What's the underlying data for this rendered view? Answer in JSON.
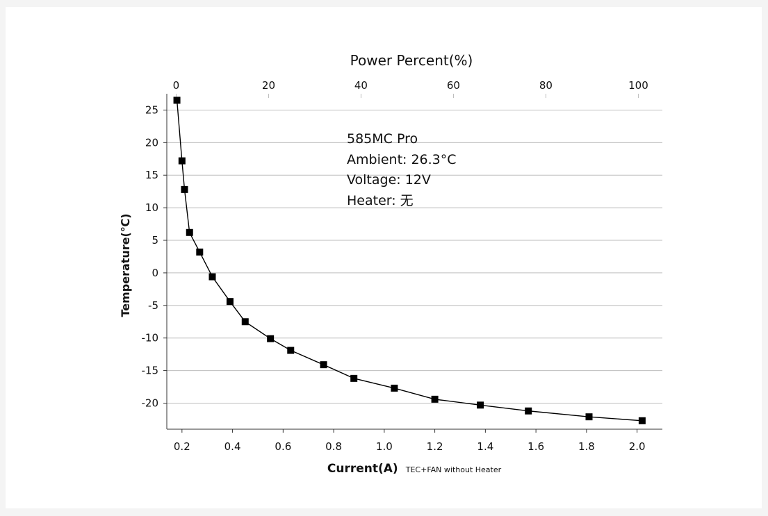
{
  "chart_data": {
    "type": "line",
    "title": "",
    "xlabel": "Current(A)",
    "xlabel_note": "TEC+FAN without Heater",
    "ylabel": "Temperature(℃)",
    "x2label": "Power Percent(%)",
    "xlim": [
      0.14,
      2.1
    ],
    "ylim": [
      -24,
      27.5
    ],
    "x2lim": [
      0,
      100
    ],
    "x_ticks": [
      0.2,
      0.4,
      0.6,
      0.8,
      1.0,
      1.2,
      1.4,
      1.6,
      1.8,
      2.0
    ],
    "x_tick_labels": [
      "0.2",
      "0.4",
      "0.6",
      "0.8",
      "1.0",
      "1.2",
      "1.4",
      "1.6",
      "1.8",
      "2.0"
    ],
    "y_ticks": [
      25,
      20,
      15,
      10,
      5,
      0,
      -5,
      -10,
      -15,
      -20
    ],
    "y_tick_labels": [
      "25",
      "20",
      "15",
      "10",
      "5",
      "0",
      "-5",
      "-10",
      "-15",
      "-20"
    ],
    "x2_ticks": [
      0,
      20,
      40,
      60,
      80,
      100
    ],
    "x2_tick_labels": [
      "0",
      "20",
      "40",
      "60",
      "80",
      "100"
    ],
    "grid": "horizontal",
    "legend": "none",
    "line_color": "#000000",
    "marker": "square",
    "series": [
      {
        "x": [
          0.18,
          0.2,
          0.21,
          0.23,
          0.27,
          0.32,
          0.39,
          0.45,
          0.55,
          0.63,
          0.76,
          0.88,
          1.04,
          1.2,
          1.38,
          1.57,
          1.81,
          2.02
        ],
        "y": [
          26.5,
          17.2,
          12.8,
          6.2,
          3.2,
          -0.6,
          -4.4,
          -7.5,
          -10.1,
          -11.9,
          -14.1,
          -16.2,
          -17.7,
          -19.4,
          -20.3,
          -21.2,
          -22.1,
          -22.7
        ]
      }
    ],
    "annotations": [
      "585MC Pro",
      "Ambient: 26.3°C",
      "Voltage: 12V",
      "Heater: 无"
    ]
  }
}
